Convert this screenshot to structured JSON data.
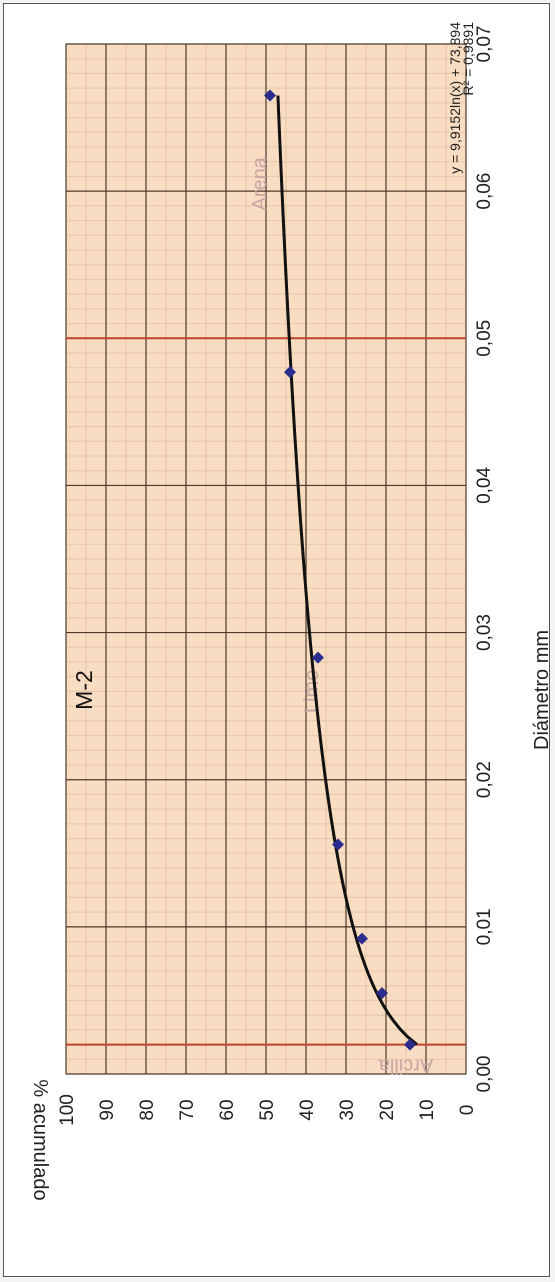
{
  "chart_data": {
    "type": "scatter",
    "title": "M-2",
    "xlabel": "Diámetro mm",
    "ylabel": "% acumulado",
    "xlim": [
      0,
      0.07
    ],
    "ylim": [
      0,
      100
    ],
    "x_ticks": [
      "0,00",
      "0,01",
      "0,02",
      "0,03",
      "0,04",
      "0,05",
      "0,06",
      "0,07"
    ],
    "y_ticks": [
      "0",
      "10",
      "20",
      "30",
      "40",
      "50",
      "60",
      "70",
      "80",
      "90",
      "100"
    ],
    "series": [
      {
        "x": [
          0.002,
          0.0055,
          0.0092,
          0.0156,
          0.0283,
          0.0477,
          0.0665
        ],
        "y": [
          14,
          21,
          26,
          32,
          37,
          44,
          49
        ]
      }
    ],
    "trendline": {
      "type": "logarithmic",
      "a": 9.9152,
      "b": 73.894,
      "equation": "y = 9,9152ln(x) + 73,894",
      "r2": "R² = 0,9891"
    },
    "vertical_lines": [
      0.002,
      0.05
    ],
    "zones": [
      {
        "label": "Arcilla",
        "x": 0.001,
        "y": 15
      },
      {
        "label": "Limo",
        "x": 0.026,
        "y": 37
      },
      {
        "label": "Arena",
        "x": 0.0605,
        "y": 50
      }
    ],
    "grid": true,
    "colors": {
      "plot_bg": "#f9ddc3",
      "minor_grid": "#e5c6a8",
      "major_grid": "#4a3a2a",
      "marker": "#2c2c8c",
      "trend": "#111111",
      "boundary": "#c0432a",
      "zone_label": "#c9a6a6"
    }
  }
}
